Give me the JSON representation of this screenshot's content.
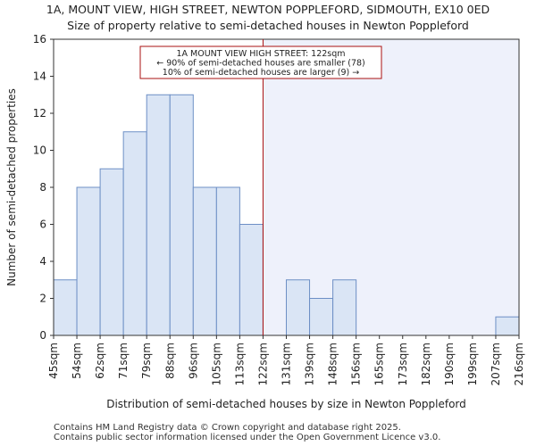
{
  "title": "1A, MOUNT VIEW, HIGH STREET, NEWTON POPPLEFORD, SIDMOUTH, EX10 0ED",
  "subtitle": "Size of property relative to semi-detached houses in Newton Poppleford",
  "footer": [
    "Contains HM Land Registry data © Crown copyright and database right 2025.",
    "Contains public sector information licensed under the Open Government Licence v3.0."
  ],
  "chart_data": {
    "type": "bar",
    "xlabel": "Distribution of semi-detached houses by size in Newton Poppleford",
    "ylabel": "Number of semi-detached properties",
    "ylim": [
      0,
      16
    ],
    "yticks": [
      0,
      2,
      4,
      6,
      8,
      10,
      12,
      14,
      16
    ],
    "bin_edges": [
      "45sqm",
      "54sqm",
      "62sqm",
      "71sqm",
      "79sqm",
      "88sqm",
      "96sqm",
      "105sqm",
      "113sqm",
      "122sqm",
      "131sqm",
      "139sqm",
      "148sqm",
      "156sqm",
      "165sqm",
      "173sqm",
      "182sqm",
      "190sqm",
      "199sqm",
      "207sqm",
      "216sqm"
    ],
    "values": [
      3,
      8,
      9,
      11,
      13,
      13,
      8,
      8,
      6,
      0,
      3,
      2,
      3,
      0,
      0,
      0,
      0,
      0,
      0,
      1
    ],
    "marker_edge_index": 9,
    "annotation": [
      "1A MOUNT VIEW HIGH STREET: 122sqm",
      "← 90% of semi-detached houses are smaller (78)",
      "10% of semi-detached houses are larger (9) →"
    ],
    "colors": {
      "bar_fill": "#dae5f5",
      "bar_stroke": "#6d8fc5",
      "marker": "#aa1111",
      "highlight_region": "#eef1fb"
    },
    "grid": false
  }
}
